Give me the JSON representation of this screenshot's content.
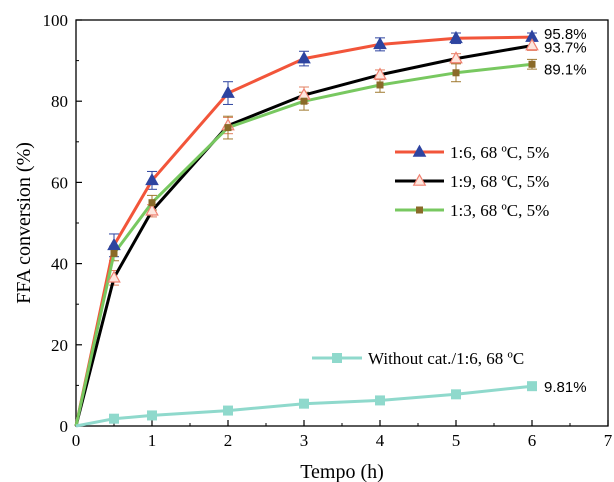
{
  "chart_data": {
    "type": "line",
    "xlabel": "Tempo (h)",
    "ylabel": "FFA conversion (%)",
    "xlim": [
      0,
      7
    ],
    "ylim": [
      0,
      100
    ],
    "xticks": [
      "0",
      "1",
      "2",
      "3",
      "4",
      "5",
      "6",
      "7"
    ],
    "yticks": [
      "0",
      "20",
      "40",
      "60",
      "80",
      "100"
    ],
    "grid": false,
    "legend_placement": "right",
    "x": [
      0,
      0.5,
      1,
      2,
      3,
      4,
      5,
      6
    ],
    "series": [
      {
        "name": "1:6, 68 ºC, 5%",
        "color": "#f2553a",
        "marker_color": "#2e44a0",
        "marker": "triangle",
        "values": [
          0,
          44.5,
          60.5,
          82,
          90.5,
          94,
          95.5,
          95.8
        ],
        "errors": [
          0,
          2.8,
          2.2,
          2.8,
          1.8,
          1.6,
          1.3,
          1
        ],
        "end_label": "95.8%"
      },
      {
        "name": "1:9, 68 ºC, 5%",
        "color": "#000000",
        "marker_color": "#f08070",
        "marker": "triangle-open",
        "values": [
          0,
          36.5,
          53,
          74,
          81.5,
          86.5,
          90.5,
          93.7
        ],
        "errors": [
          0,
          1.8,
          1.5,
          2,
          2,
          1.2,
          1.2,
          1.2
        ],
        "end_label": "93.7%"
      },
      {
        "name": "1:3, 68 ºC, 5%",
        "color": "#78c860",
        "marker_color": "#8a6a28",
        "marker": "square",
        "values": [
          0,
          42.5,
          55,
          73.5,
          80,
          84,
          87,
          89.1
        ],
        "errors": [
          0,
          1.8,
          1.8,
          2.8,
          2.2,
          1.8,
          2.2,
          1.2
        ],
        "end_label": "89.1%"
      },
      {
        "name": "Without cat./1:6, 68 ºC",
        "color": "#8fd9cc",
        "marker_color": "#8fd9cc",
        "marker": "square",
        "values": [
          0,
          1.8,
          2.6,
          3.8,
          5.5,
          6.3,
          7.8,
          9.81
        ],
        "errors": [
          0,
          0,
          0,
          0,
          0,
          0,
          0,
          0
        ],
        "end_label": "9.81%"
      }
    ]
  }
}
